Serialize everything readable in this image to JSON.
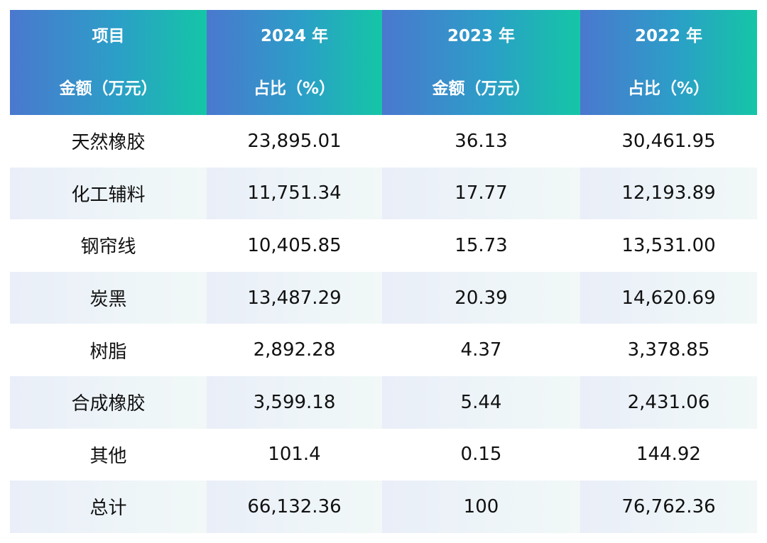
{
  "table": {
    "headers": [
      {
        "line1": "项目",
        "line2": "金额（万元）"
      },
      {
        "line1": "2024 年",
        "line2": "占比（%）"
      },
      {
        "line1": "2023 年",
        "line2": "金额（万元）"
      },
      {
        "line1": "2022 年",
        "line2": "占比（%）"
      }
    ],
    "rows": [
      [
        "天然橡胶",
        "23,895.01",
        "36.13",
        "30,461.95"
      ],
      [
        "化工辅料",
        "11,751.34",
        "17.77",
        "12,193.89"
      ],
      [
        "钢帘线",
        "10,405.85",
        "15.73",
        "13,531.00"
      ],
      [
        "炭黑",
        "13,487.29",
        "20.39",
        "14,620.69"
      ],
      [
        "树脂",
        "2,892.28",
        "4.37",
        "3,378.85"
      ],
      [
        "合成橡胶",
        "3,599.18",
        "5.44",
        "2,431.06"
      ],
      [
        "其他",
        "101.4",
        "0.15",
        "144.92"
      ],
      [
        "总计",
        "66,132.36",
        "100",
        "76,762.36"
      ]
    ]
  }
}
